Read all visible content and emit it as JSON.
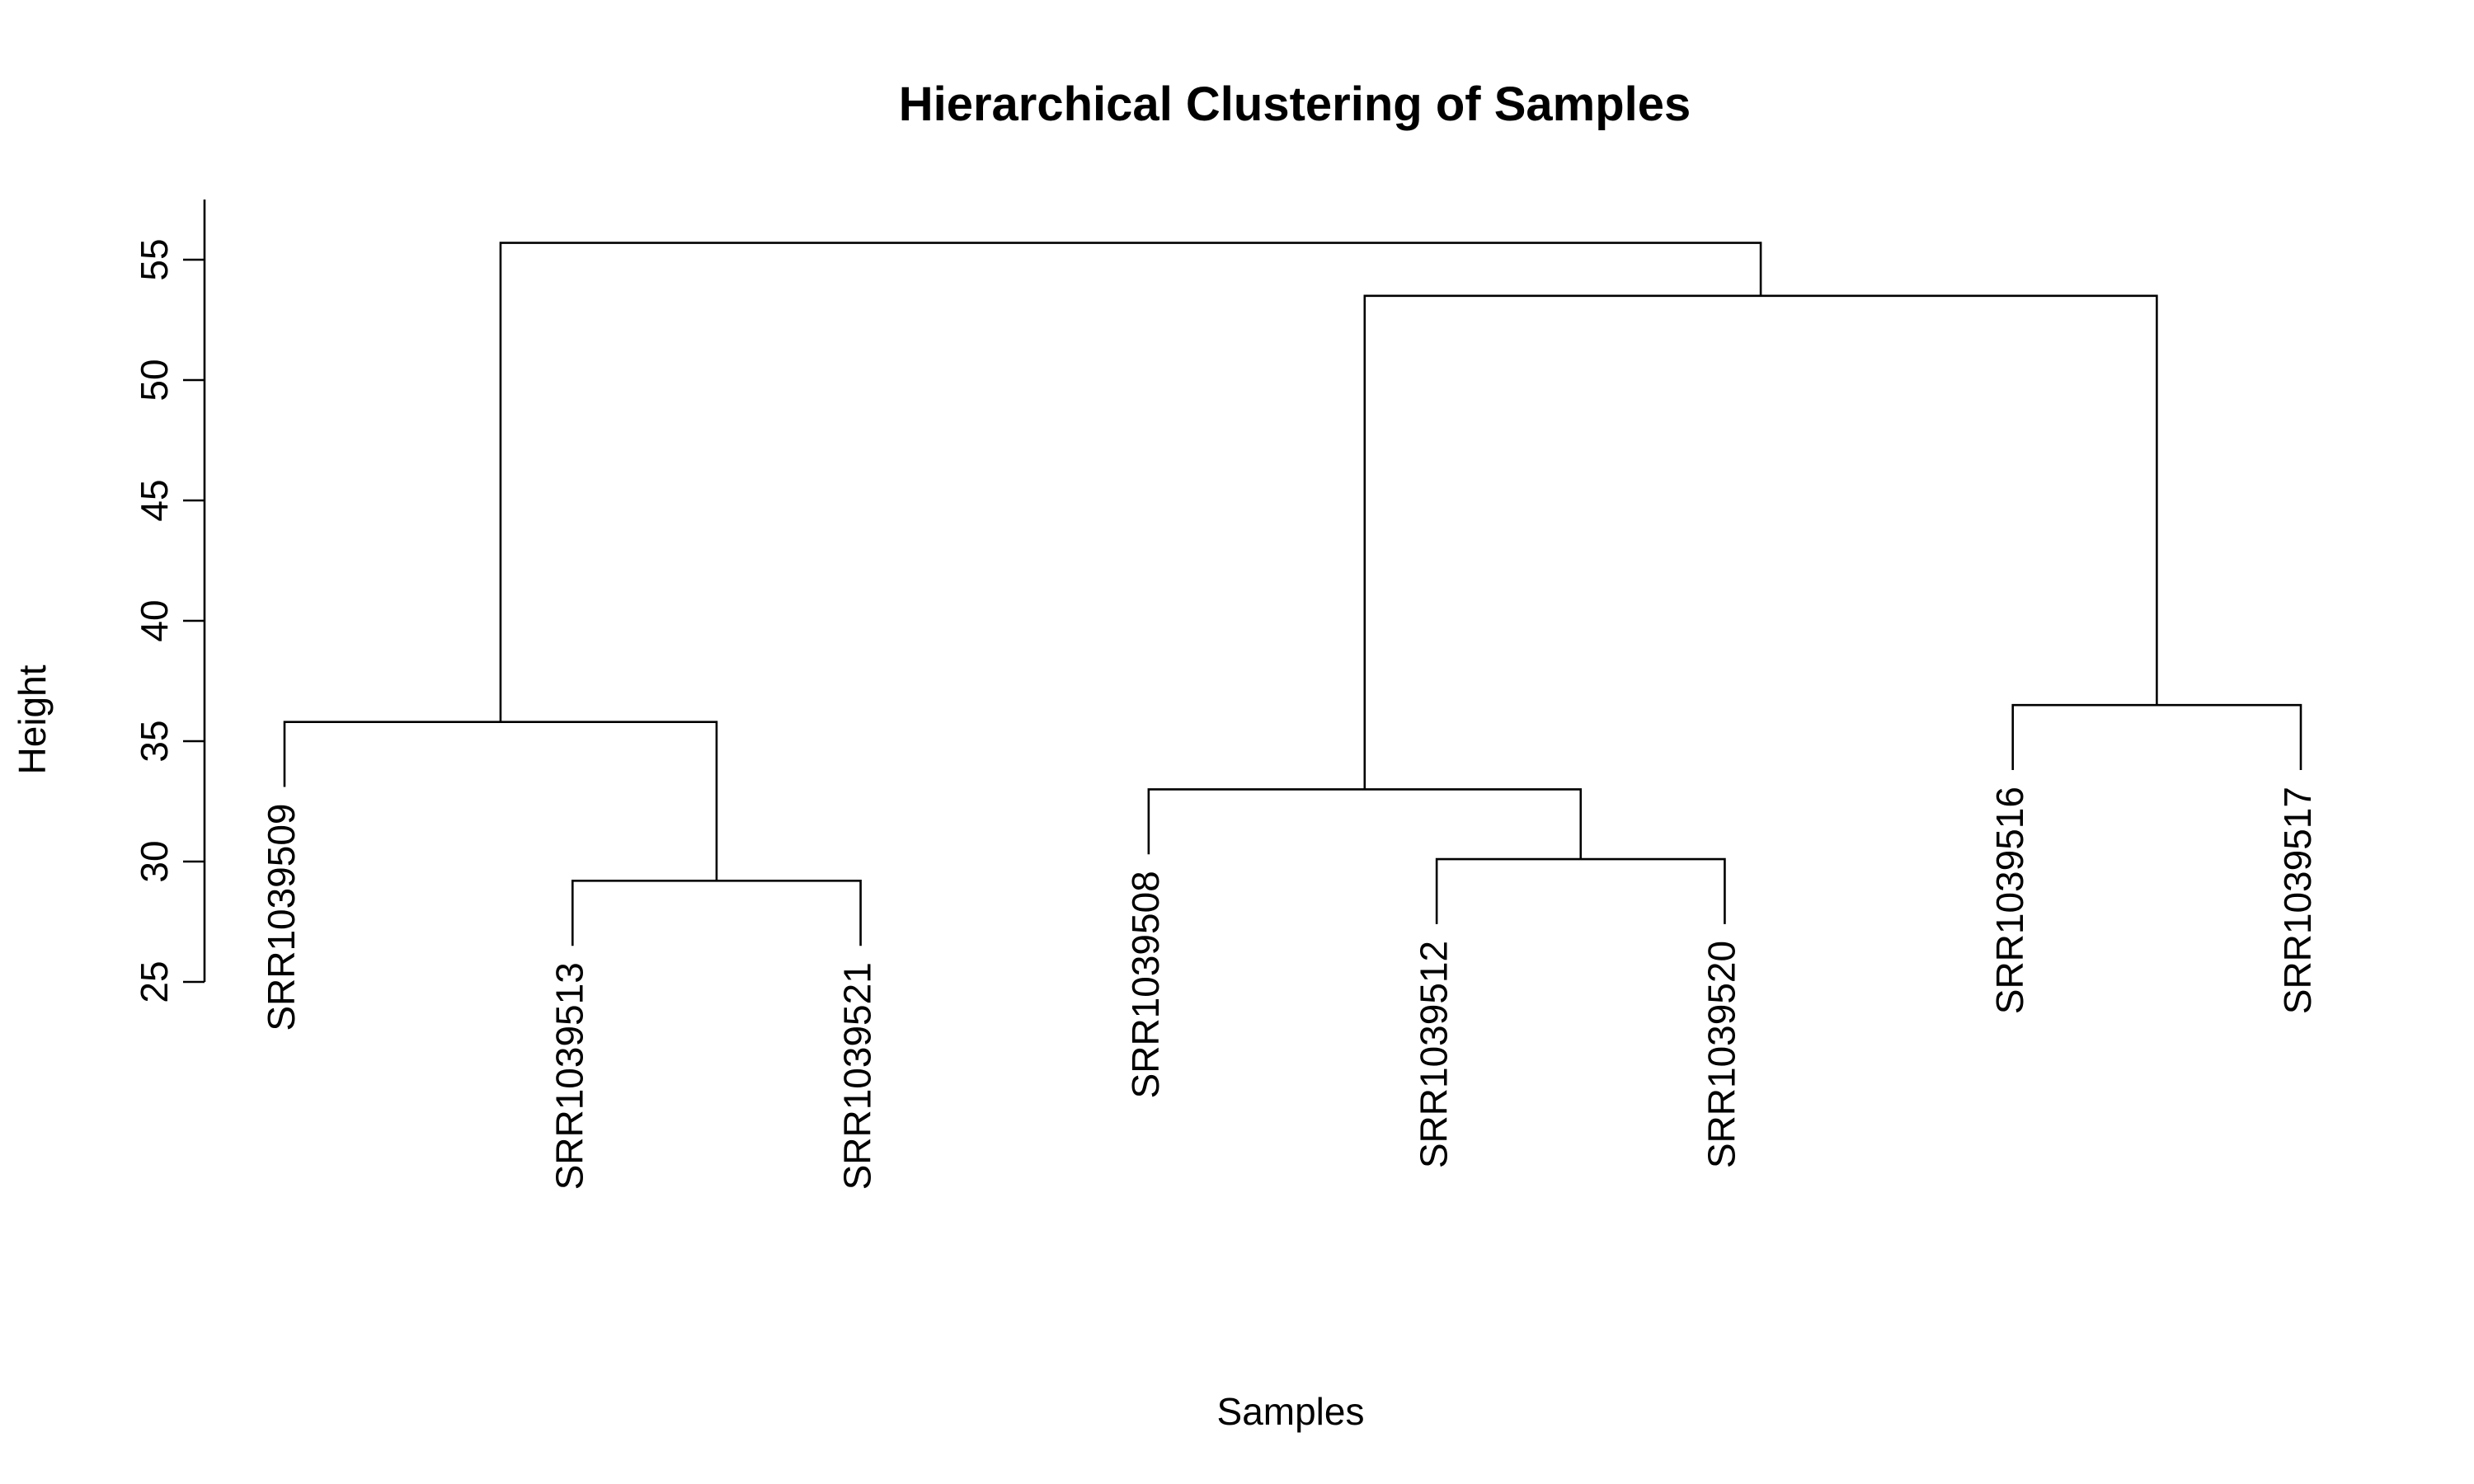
{
  "chart_data": {
    "type": "dendrogram",
    "title": "Hierarchical Clustering of Samples",
    "xlabel": "Samples",
    "ylabel": "Height",
    "ylim": [
      25,
      57.5
    ],
    "yticks": [
      25,
      30,
      35,
      40,
      45,
      50,
      55
    ],
    "yticklabels": [
      "25",
      "30",
      "35",
      "40",
      "45",
      "50",
      "55"
    ],
    "grid": false,
    "leaves": [
      "SRR1039509",
      "SRR1039513",
      "SRR1039521",
      "SRR1039508",
      "SRR1039512",
      "SRR1039520",
      "SRR1039516",
      "SRR1039517"
    ],
    "leaf_hang": 2.7,
    "merges": [
      {
        "id": "m1",
        "left": "SRR1039513",
        "right": "SRR1039521",
        "height": 29.2
      },
      {
        "id": "m2",
        "left": "SRR1039512",
        "right": "SRR1039520",
        "height": 30.1
      },
      {
        "id": "m3",
        "left": "SRR1039508",
        "right": "m2",
        "height": 33.0
      },
      {
        "id": "m4",
        "left": "SRR1039509",
        "right": "m1",
        "height": 35.8
      },
      {
        "id": "m5",
        "left": "SRR1039516",
        "right": "SRR1039517",
        "height": 36.5
      },
      {
        "id": "m6",
        "left": "m3",
        "right": "m5",
        "height": 53.5
      },
      {
        "id": "m7",
        "left": "m4",
        "right": "m6",
        "height": 55.7
      }
    ]
  }
}
